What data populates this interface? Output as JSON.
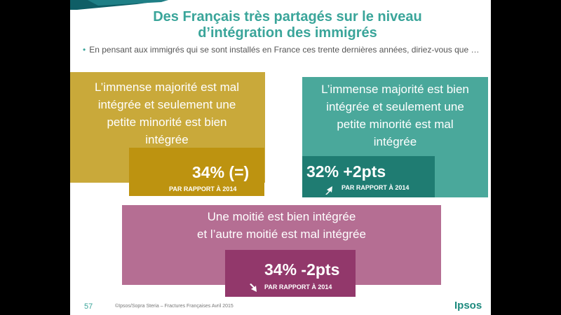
{
  "slide": {
    "title_line1": "Des Français très partagés sur le niveau",
    "title_line2": "d’intégration des immigrés",
    "question": "En pensant aux immigrés qui se sont installés en France ces trente dernières années, diriez-vous que …"
  },
  "answers": [
    {
      "lines": [
        "L’immense majorité est mal",
        "intégrée et seulement une",
        "petite minorité est bien",
        "intégrée"
      ],
      "percent": "34% (=)",
      "comparison": "PAR RAPPORT À 2014",
      "value": 34,
      "color": "#c9a93a",
      "inner_color": "#bd9310"
    },
    {
      "lines": [
        "L’immense majorité est bien",
        "intégrée et seulement une",
        "petite minorité est mal",
        "intégrée"
      ],
      "percent": "32% +2pts",
      "comparison": "PAR RAPPORT À 2014",
      "value": 32,
      "change": "+2",
      "arrow": "arrow-up-icon",
      "color": "#4aa89b",
      "inner_color": "#1f7c72"
    },
    {
      "lines": [
        "Une moitié est bien intégrée",
        "et l’autre moitié est mal intégrée"
      ],
      "percent": "34% -2pts",
      "comparison": "PAR RAPPORT À 2014",
      "value": 34,
      "change": "-2",
      "arrow": "arrow-down-icon",
      "color": "#b56e93",
      "inner_color": "#92386b"
    }
  ],
  "footer": {
    "page_number": "57",
    "source": "©Ipsos/Sopra Steria – Fractures Françaises Avril 2015",
    "logo": "Ipsos"
  }
}
